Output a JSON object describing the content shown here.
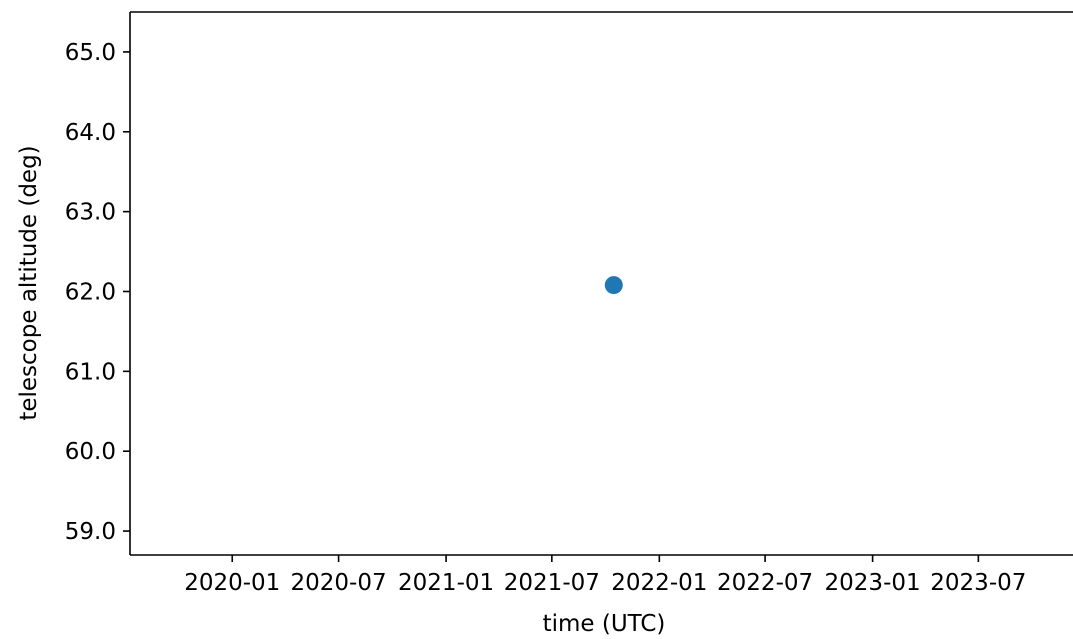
{
  "chart_data": {
    "type": "scatter",
    "title": "",
    "xlabel": "time (UTC)",
    "ylabel": "telescope altitude (deg)",
    "x_tick_labels": [
      "2020-01",
      "2020-07",
      "2021-01",
      "2021-07",
      "2022-01",
      "2022-07",
      "2023-01",
      "2023-07"
    ],
    "x_tick_dates": [
      "2020-01-01",
      "2020-07-01",
      "2021-01-01",
      "2021-07-01",
      "2022-01-01",
      "2022-07-01",
      "2023-01-01",
      "2023-07-01"
    ],
    "xlim": [
      "2019-07-10",
      "2023-12-10"
    ],
    "y_tick_labels": [
      "59.0",
      "60.0",
      "61.0",
      "62.0",
      "63.0",
      "64.0",
      "65.0"
    ],
    "y_tick_values": [
      59,
      60,
      61,
      62,
      63,
      64,
      65
    ],
    "ylim": [
      58.7,
      65.5
    ],
    "series": [
      {
        "x": [
          "2021-10-15"
        ],
        "y": [
          62.08
        ],
        "color": "#1f77b4"
      }
    ],
    "grid": false,
    "legend": "none"
  }
}
